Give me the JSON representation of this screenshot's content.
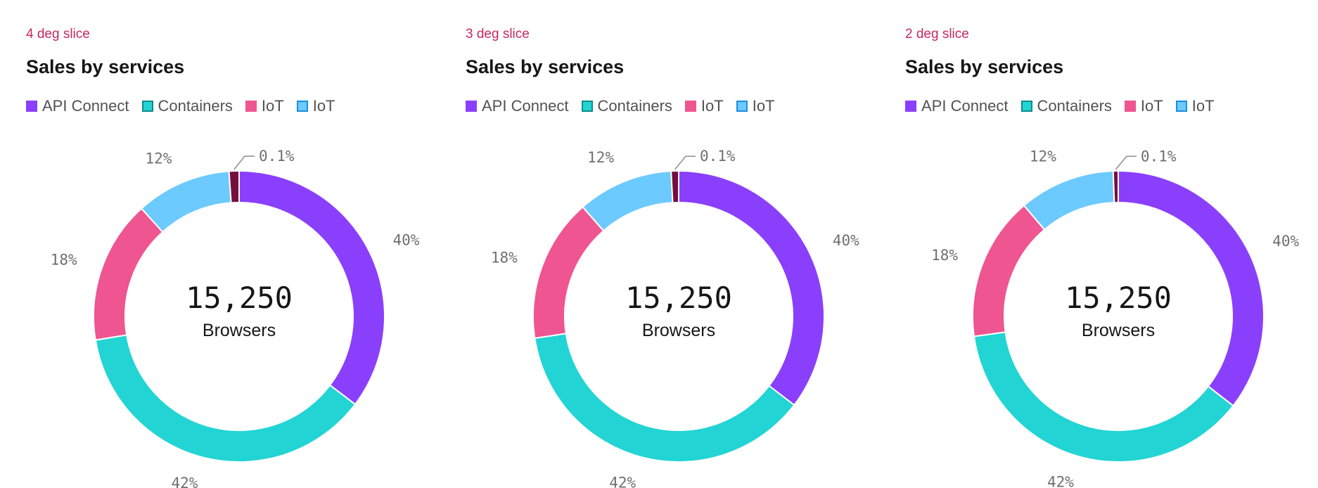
{
  "chart_data": [
    {
      "type": "pie",
      "subtitle": "4 deg slice",
      "title": "Sales by services",
      "legend": [
        "API Connect",
        "Containers",
        "IoT",
        "IoT"
      ],
      "slices": [
        {
          "label": "API Connect",
          "value": 40,
          "color": "#8a3ffc",
          "display": "40%"
        },
        {
          "label": "Containers",
          "value": 42,
          "color": "#22d4d4",
          "display": "42%"
        },
        {
          "label": "IoT",
          "value": 18,
          "color": "#ef5590",
          "display": "18%"
        },
        {
          "label": "IoT",
          "value": 12,
          "color": "#6ccaff",
          "display": "12%"
        },
        {
          "label": "",
          "value": 0.1,
          "color": "#750e3c",
          "display": "0.1%",
          "min_angle_deg": 4
        }
      ],
      "center_value": "15,250",
      "center_label": "Browsers"
    },
    {
      "type": "pie",
      "subtitle": "3 deg slice",
      "title": "Sales by services",
      "legend": [
        "API Connect",
        "Containers",
        "IoT",
        "IoT"
      ],
      "slices": [
        {
          "label": "API Connect",
          "value": 40,
          "color": "#8a3ffc",
          "display": "40%"
        },
        {
          "label": "Containers",
          "value": 42,
          "color": "#22d4d4",
          "display": "42%"
        },
        {
          "label": "IoT",
          "value": 18,
          "color": "#ef5590",
          "display": "18%"
        },
        {
          "label": "IoT",
          "value": 12,
          "color": "#6ccaff",
          "display": "12%"
        },
        {
          "label": "",
          "value": 0.1,
          "color": "#750e3c",
          "display": "0.1%",
          "min_angle_deg": 3
        }
      ],
      "center_value": "15,250",
      "center_label": "Browsers"
    },
    {
      "type": "pie",
      "subtitle": "2 deg slice",
      "title": "Sales by services",
      "legend": [
        "API Connect",
        "Containers",
        "IoT",
        "IoT"
      ],
      "slices": [
        {
          "label": "API Connect",
          "value": 40,
          "color": "#8a3ffc",
          "display": "40%"
        },
        {
          "label": "Containers",
          "value": 42,
          "color": "#22d4d4",
          "display": "42%"
        },
        {
          "label": "IoT",
          "value": 18,
          "color": "#ef5590",
          "display": "18%"
        },
        {
          "label": "IoT",
          "value": 12,
          "color": "#6ccaff",
          "display": "12%"
        },
        {
          "label": "",
          "value": 0.1,
          "color": "#750e3c",
          "display": "0.1%",
          "min_angle_deg": 2
        }
      ],
      "center_value": "15,250",
      "center_label": "Browsers"
    }
  ]
}
